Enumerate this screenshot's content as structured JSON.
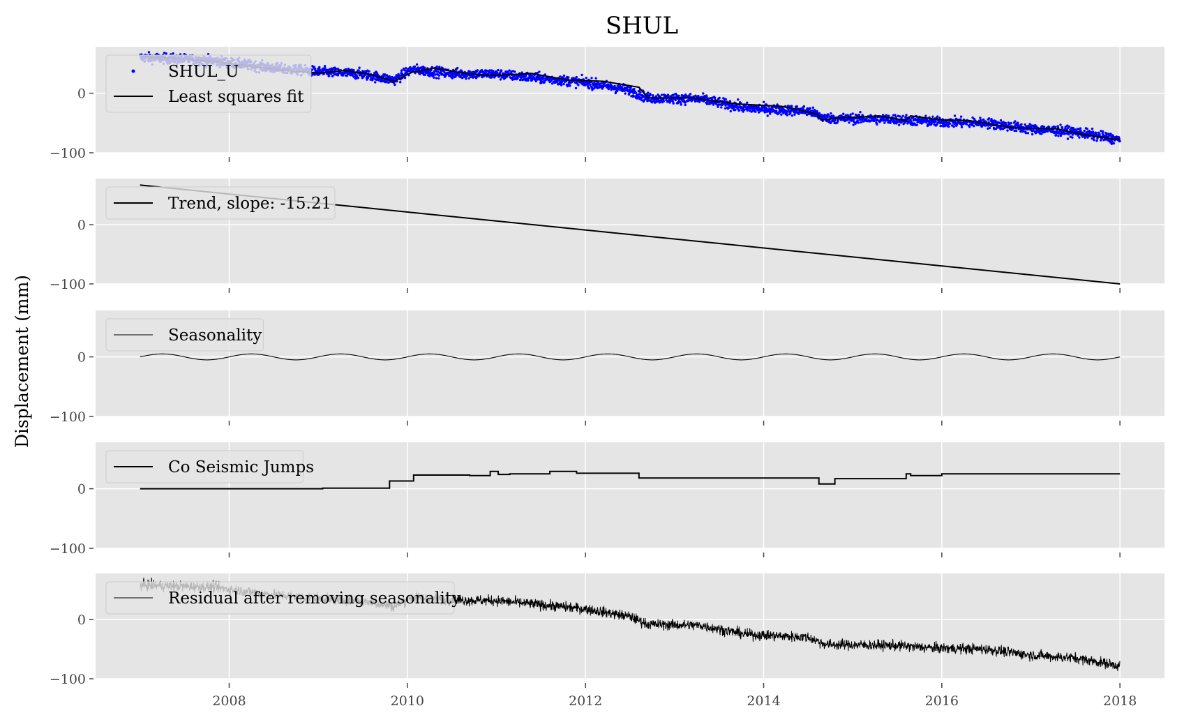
{
  "chart_data": {
    "type": "line",
    "title": "SHUL",
    "ylabel": "Displacement (mm)",
    "xlim": [
      2006.5,
      2018.5
    ],
    "ylim": [
      -100,
      78
    ],
    "x_ticks": [
      2008,
      2010,
      2012,
      2014,
      2016,
      2018
    ],
    "y_ticks": [
      0,
      -100
    ],
    "grid": true,
    "legend_position": "upper-left",
    "panels": [
      {
        "id": "observed",
        "series": [
          {
            "name": "SHUL_U",
            "kind": "scatter",
            "color": "#0000ff",
            "trend_points": [
              [
                2007.0,
                60
              ],
              [
                2007.8,
                55
              ],
              [
                2008.5,
                42
              ],
              [
                2009.0,
                36
              ],
              [
                2009.5,
                32
              ],
              [
                2009.85,
                22
              ],
              [
                2010.05,
                40
              ],
              [
                2010.5,
                33
              ],
              [
                2011.0,
                32
              ],
              [
                2011.5,
                25
              ],
              [
                2012.0,
                18
              ],
              [
                2012.5,
                5
              ],
              [
                2012.7,
                -8
              ],
              [
                2013.3,
                -10
              ],
              [
                2013.8,
                -25
              ],
              [
                2014.5,
                -30
              ],
              [
                2014.7,
                -42
              ],
              [
                2015.5,
                -44
              ],
              [
                2015.9,
                -48
              ],
              [
                2016.5,
                -50
              ],
              [
                2017.0,
                -60
              ],
              [
                2017.5,
                -65
              ],
              [
                2018.0,
                -78
              ]
            ]
          },
          {
            "name": "Least squares fit",
            "kind": "line",
            "color": "#000000",
            "points": [
              [
                2007.0,
                62
              ],
              [
                2007.5,
                58
              ],
              [
                2008.0,
                50
              ],
              [
                2008.5,
                40
              ],
              [
                2009.0,
                34
              ],
              [
                2009.3,
                38
              ],
              [
                2009.6,
                31
              ],
              [
                2009.85,
                20
              ],
              [
                2010.05,
                35
              ],
              [
                2010.3,
                42
              ],
              [
                2010.7,
                32
              ],
              [
                2011.0,
                30
              ],
              [
                2011.4,
                33
              ],
              [
                2011.8,
                22
              ],
              [
                2012.2,
                20
              ],
              [
                2012.6,
                10
              ],
              [
                2012.7,
                -8
              ],
              [
                2013.2,
                -8
              ],
              [
                2013.7,
                -18
              ],
              [
                2014.2,
                -22
              ],
              [
                2014.6,
                -35
              ],
              [
                2014.65,
                -45
              ],
              [
                2014.8,
                -42
              ],
              [
                2015.3,
                -38
              ],
              [
                2015.6,
                -46
              ],
              [
                2015.65,
                -38
              ],
              [
                2016.0,
                -45
              ],
              [
                2016.3,
                -46
              ],
              [
                2016.8,
                -58
              ],
              [
                2017.3,
                -60
              ],
              [
                2017.6,
                -70
              ],
              [
                2018.0,
                -78
              ]
            ]
          }
        ]
      },
      {
        "id": "trend",
        "series": [
          {
            "name": "Trend, slope: -15.21",
            "kind": "line",
            "color": "#000000",
            "slope": -15.21,
            "points": [
              [
                2007.0,
                67
              ],
              [
                2018.0,
                -100
              ]
            ]
          }
        ]
      },
      {
        "id": "seasonality",
        "series": [
          {
            "name": "Seasonality",
            "kind": "sine",
            "color": "#000000",
            "amplitude": 5,
            "period": 1.0,
            "start": 2007.0,
            "end": 2018.0
          }
        ]
      },
      {
        "id": "jumps",
        "series": [
          {
            "name": "Co Seismic Jumps",
            "kind": "step",
            "color": "#000000",
            "points": [
              [
                2007.0,
                0
              ],
              [
                2009.05,
                0
              ],
              [
                2009.05,
                1
              ],
              [
                2009.8,
                1
              ],
              [
                2009.8,
                13
              ],
              [
                2010.07,
                13
              ],
              [
                2010.07,
                23
              ],
              [
                2010.7,
                23
              ],
              [
                2010.7,
                22
              ],
              [
                2010.93,
                22
              ],
              [
                2010.93,
                29
              ],
              [
                2011.02,
                29
              ],
              [
                2011.02,
                24
              ],
              [
                2011.15,
                24
              ],
              [
                2011.15,
                25
              ],
              [
                2011.6,
                25
              ],
              [
                2011.6,
                29
              ],
              [
                2011.9,
                29
              ],
              [
                2011.9,
                26
              ],
              [
                2012.6,
                26
              ],
              [
                2012.6,
                18
              ],
              [
                2014.62,
                18
              ],
              [
                2014.62,
                8
              ],
              [
                2014.8,
                8
              ],
              [
                2014.8,
                17
              ],
              [
                2015.6,
                17
              ],
              [
                2015.6,
                25
              ],
              [
                2015.65,
                25
              ],
              [
                2015.65,
                22
              ],
              [
                2016.0,
                22
              ],
              [
                2016.0,
                25
              ],
              [
                2018.0,
                25
              ]
            ]
          }
        ]
      },
      {
        "id": "residual",
        "series": [
          {
            "name": "Residual after removing seasonality",
            "kind": "noisy-line",
            "color": "#000000",
            "trend_points": [
              [
                2007.0,
                58
              ],
              [
                2007.8,
                55
              ],
              [
                2008.5,
                42
              ],
              [
                2009.0,
                36
              ],
              [
                2009.5,
                32
              ],
              [
                2009.85,
                22
              ],
              [
                2010.05,
                38
              ],
              [
                2010.5,
                33
              ],
              [
                2011.0,
                32
              ],
              [
                2011.5,
                25
              ],
              [
                2012.0,
                18
              ],
              [
                2012.5,
                5
              ],
              [
                2012.7,
                -8
              ],
              [
                2013.3,
                -10
              ],
              [
                2013.8,
                -25
              ],
              [
                2014.5,
                -30
              ],
              [
                2014.7,
                -42
              ],
              [
                2015.5,
                -44
              ],
              [
                2015.9,
                -48
              ],
              [
                2016.5,
                -50
              ],
              [
                2017.0,
                -60
              ],
              [
                2017.5,
                -65
              ],
              [
                2018.0,
                -78
              ]
            ]
          }
        ]
      }
    ]
  }
}
